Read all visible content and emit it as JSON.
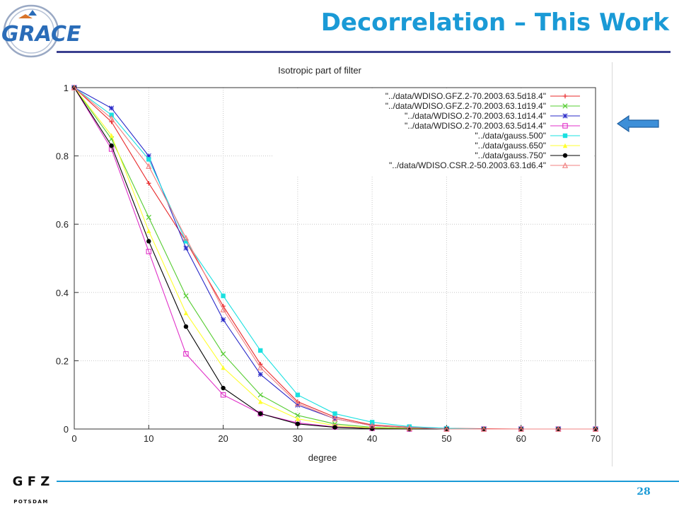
{
  "slide": {
    "title": "Decorrelation – This Work",
    "page_number": "28",
    "logo_text": "GRACE",
    "footer_logo_top": "G F Z",
    "footer_logo_bottom": "POTSDAM",
    "arrow_icon": "left-arrow-icon",
    "colors": {
      "title": "#1a9ad6",
      "top_rule": "#3a3f8f",
      "bottom_rule": "#1a9ad6",
      "arrow_fill": "#3d8fd8"
    }
  },
  "chart_data": {
    "type": "line",
    "title": "Isotropic part of filter",
    "xlabel": "degree",
    "ylabel": "",
    "xlim": [
      0,
      70
    ],
    "ylim": [
      0,
      1
    ],
    "x_ticks": [
      0,
      10,
      20,
      30,
      40,
      50,
      60,
      70
    ],
    "y_ticks": [
      0,
      0.2,
      0.4,
      0.6,
      0.8,
      1
    ],
    "y_tick_labels": [
      "0",
      "0.2",
      "0.4",
      "0.6",
      "0.8",
      "1"
    ],
    "grid": true,
    "legend_position": "top-right",
    "series": [
      {
        "name": "\"../data/WDISO.GFZ.2-70.2003.63.5d18.4\"",
        "color": "#e8282a",
        "marker": "plus",
        "values": [
          [
            0,
            1
          ],
          [
            5,
            0.9
          ],
          [
            10,
            0.72
          ],
          [
            15,
            0.55
          ],
          [
            20,
            0.36
          ],
          [
            25,
            0.19
          ],
          [
            30,
            0.08
          ],
          [
            35,
            0.035
          ],
          [
            40,
            0.012
          ],
          [
            45,
            0.005
          ],
          [
            50,
            0.002
          ],
          [
            55,
            0.001
          ],
          [
            60,
            0
          ],
          [
            65,
            0
          ],
          [
            70,
            0
          ]
        ]
      },
      {
        "name": "\"../data/WDISO.GFZ.2-70.2003.63.1d19.4\"",
        "color": "#55cc30",
        "marker": "cross",
        "values": [
          [
            0,
            1
          ],
          [
            5,
            0.85
          ],
          [
            10,
            0.62
          ],
          [
            15,
            0.39
          ],
          [
            20,
            0.22
          ],
          [
            25,
            0.1
          ],
          [
            30,
            0.04
          ],
          [
            35,
            0.015
          ],
          [
            40,
            0.005
          ],
          [
            45,
            0.002
          ],
          [
            50,
            0
          ],
          [
            55,
            0
          ],
          [
            60,
            0
          ],
          [
            65,
            0
          ],
          [
            70,
            0
          ]
        ]
      },
      {
        "name": "\"../data/WDISO.2-70.2003.63.1d14.4\"",
        "color": "#2828c8",
        "marker": "star",
        "values": [
          [
            0,
            1
          ],
          [
            5,
            0.94
          ],
          [
            10,
            0.8
          ],
          [
            15,
            0.53
          ],
          [
            20,
            0.32
          ],
          [
            25,
            0.16
          ],
          [
            30,
            0.07
          ],
          [
            35,
            0.03
          ],
          [
            40,
            0.01
          ],
          [
            45,
            0.004
          ],
          [
            50,
            0.001
          ],
          [
            55,
            0
          ],
          [
            60,
            0
          ],
          [
            65,
            0
          ],
          [
            70,
            0
          ]
        ]
      },
      {
        "name": "\"../data/WDISO.2-70.2003.63.5d14.4\"",
        "color": "#e030c8",
        "marker": "square-open",
        "values": [
          [
            0,
            1
          ],
          [
            5,
            0.82
          ],
          [
            10,
            0.52
          ],
          [
            15,
            0.22
          ],
          [
            20,
            0.1
          ],
          [
            25,
            0.045
          ],
          [
            30,
            0.018
          ],
          [
            35,
            0.006
          ],
          [
            40,
            0.002
          ],
          [
            45,
            0
          ],
          [
            50,
            0
          ],
          [
            55,
            0
          ],
          [
            60,
            0
          ],
          [
            65,
            0
          ],
          [
            70,
            0
          ]
        ]
      },
      {
        "name": "\"../data/gauss.500\"",
        "color": "#1ae0e0",
        "marker": "square-filled",
        "values": [
          [
            0,
            1
          ],
          [
            5,
            0.92
          ],
          [
            10,
            0.79
          ],
          [
            15,
            0.55
          ],
          [
            20,
            0.39
          ],
          [
            25,
            0.23
          ],
          [
            30,
            0.1
          ],
          [
            35,
            0.045
          ],
          [
            40,
            0.02
          ],
          [
            45,
            0.007
          ],
          [
            50,
            0.002
          ],
          [
            55,
            0
          ],
          [
            60,
            0
          ],
          [
            65,
            0
          ],
          [
            70,
            0
          ]
        ]
      },
      {
        "name": "\"../data/gauss.650\"",
        "color": "#ffff30",
        "marker": "triangle-filled",
        "values": [
          [
            0,
            1
          ],
          [
            5,
            0.86
          ],
          [
            10,
            0.58
          ],
          [
            15,
            0.34
          ],
          [
            20,
            0.18
          ],
          [
            25,
            0.08
          ],
          [
            30,
            0.03
          ],
          [
            35,
            0.01
          ],
          [
            40,
            0.003
          ],
          [
            45,
            0.001
          ],
          [
            50,
            0
          ],
          [
            55,
            0
          ],
          [
            60,
            0
          ],
          [
            65,
            0
          ],
          [
            70,
            0
          ]
        ]
      },
      {
        "name": "\"../data/gauss.750\"",
        "color": "#000000",
        "marker": "circle-filled",
        "values": [
          [
            0,
            1
          ],
          [
            5,
            0.83
          ],
          [
            10,
            0.55
          ],
          [
            15,
            0.3
          ],
          [
            20,
            0.12
          ],
          [
            25,
            0.045
          ],
          [
            30,
            0.015
          ],
          [
            35,
            0.005
          ],
          [
            40,
            0.001
          ],
          [
            45,
            0
          ],
          [
            50,
            0
          ],
          [
            55,
            0
          ],
          [
            60,
            0
          ],
          [
            65,
            0
          ],
          [
            70,
            0
          ]
        ]
      },
      {
        "name": "\"../data/WDISO.CSR.2-50.2003.63.1d6.4\"",
        "color": "#f08080",
        "marker": "triangle-open",
        "values": [
          [
            0,
            1
          ],
          [
            5,
            0.91
          ],
          [
            10,
            0.77
          ],
          [
            15,
            0.56
          ],
          [
            20,
            0.35
          ],
          [
            25,
            0.18
          ],
          [
            30,
            0.075
          ],
          [
            35,
            0.03
          ],
          [
            40,
            0.01
          ],
          [
            45,
            0.004
          ],
          [
            50,
            0
          ],
          [
            55,
            0
          ],
          [
            60,
            0
          ],
          [
            65,
            0
          ],
          [
            70,
            0
          ]
        ]
      }
    ]
  }
}
